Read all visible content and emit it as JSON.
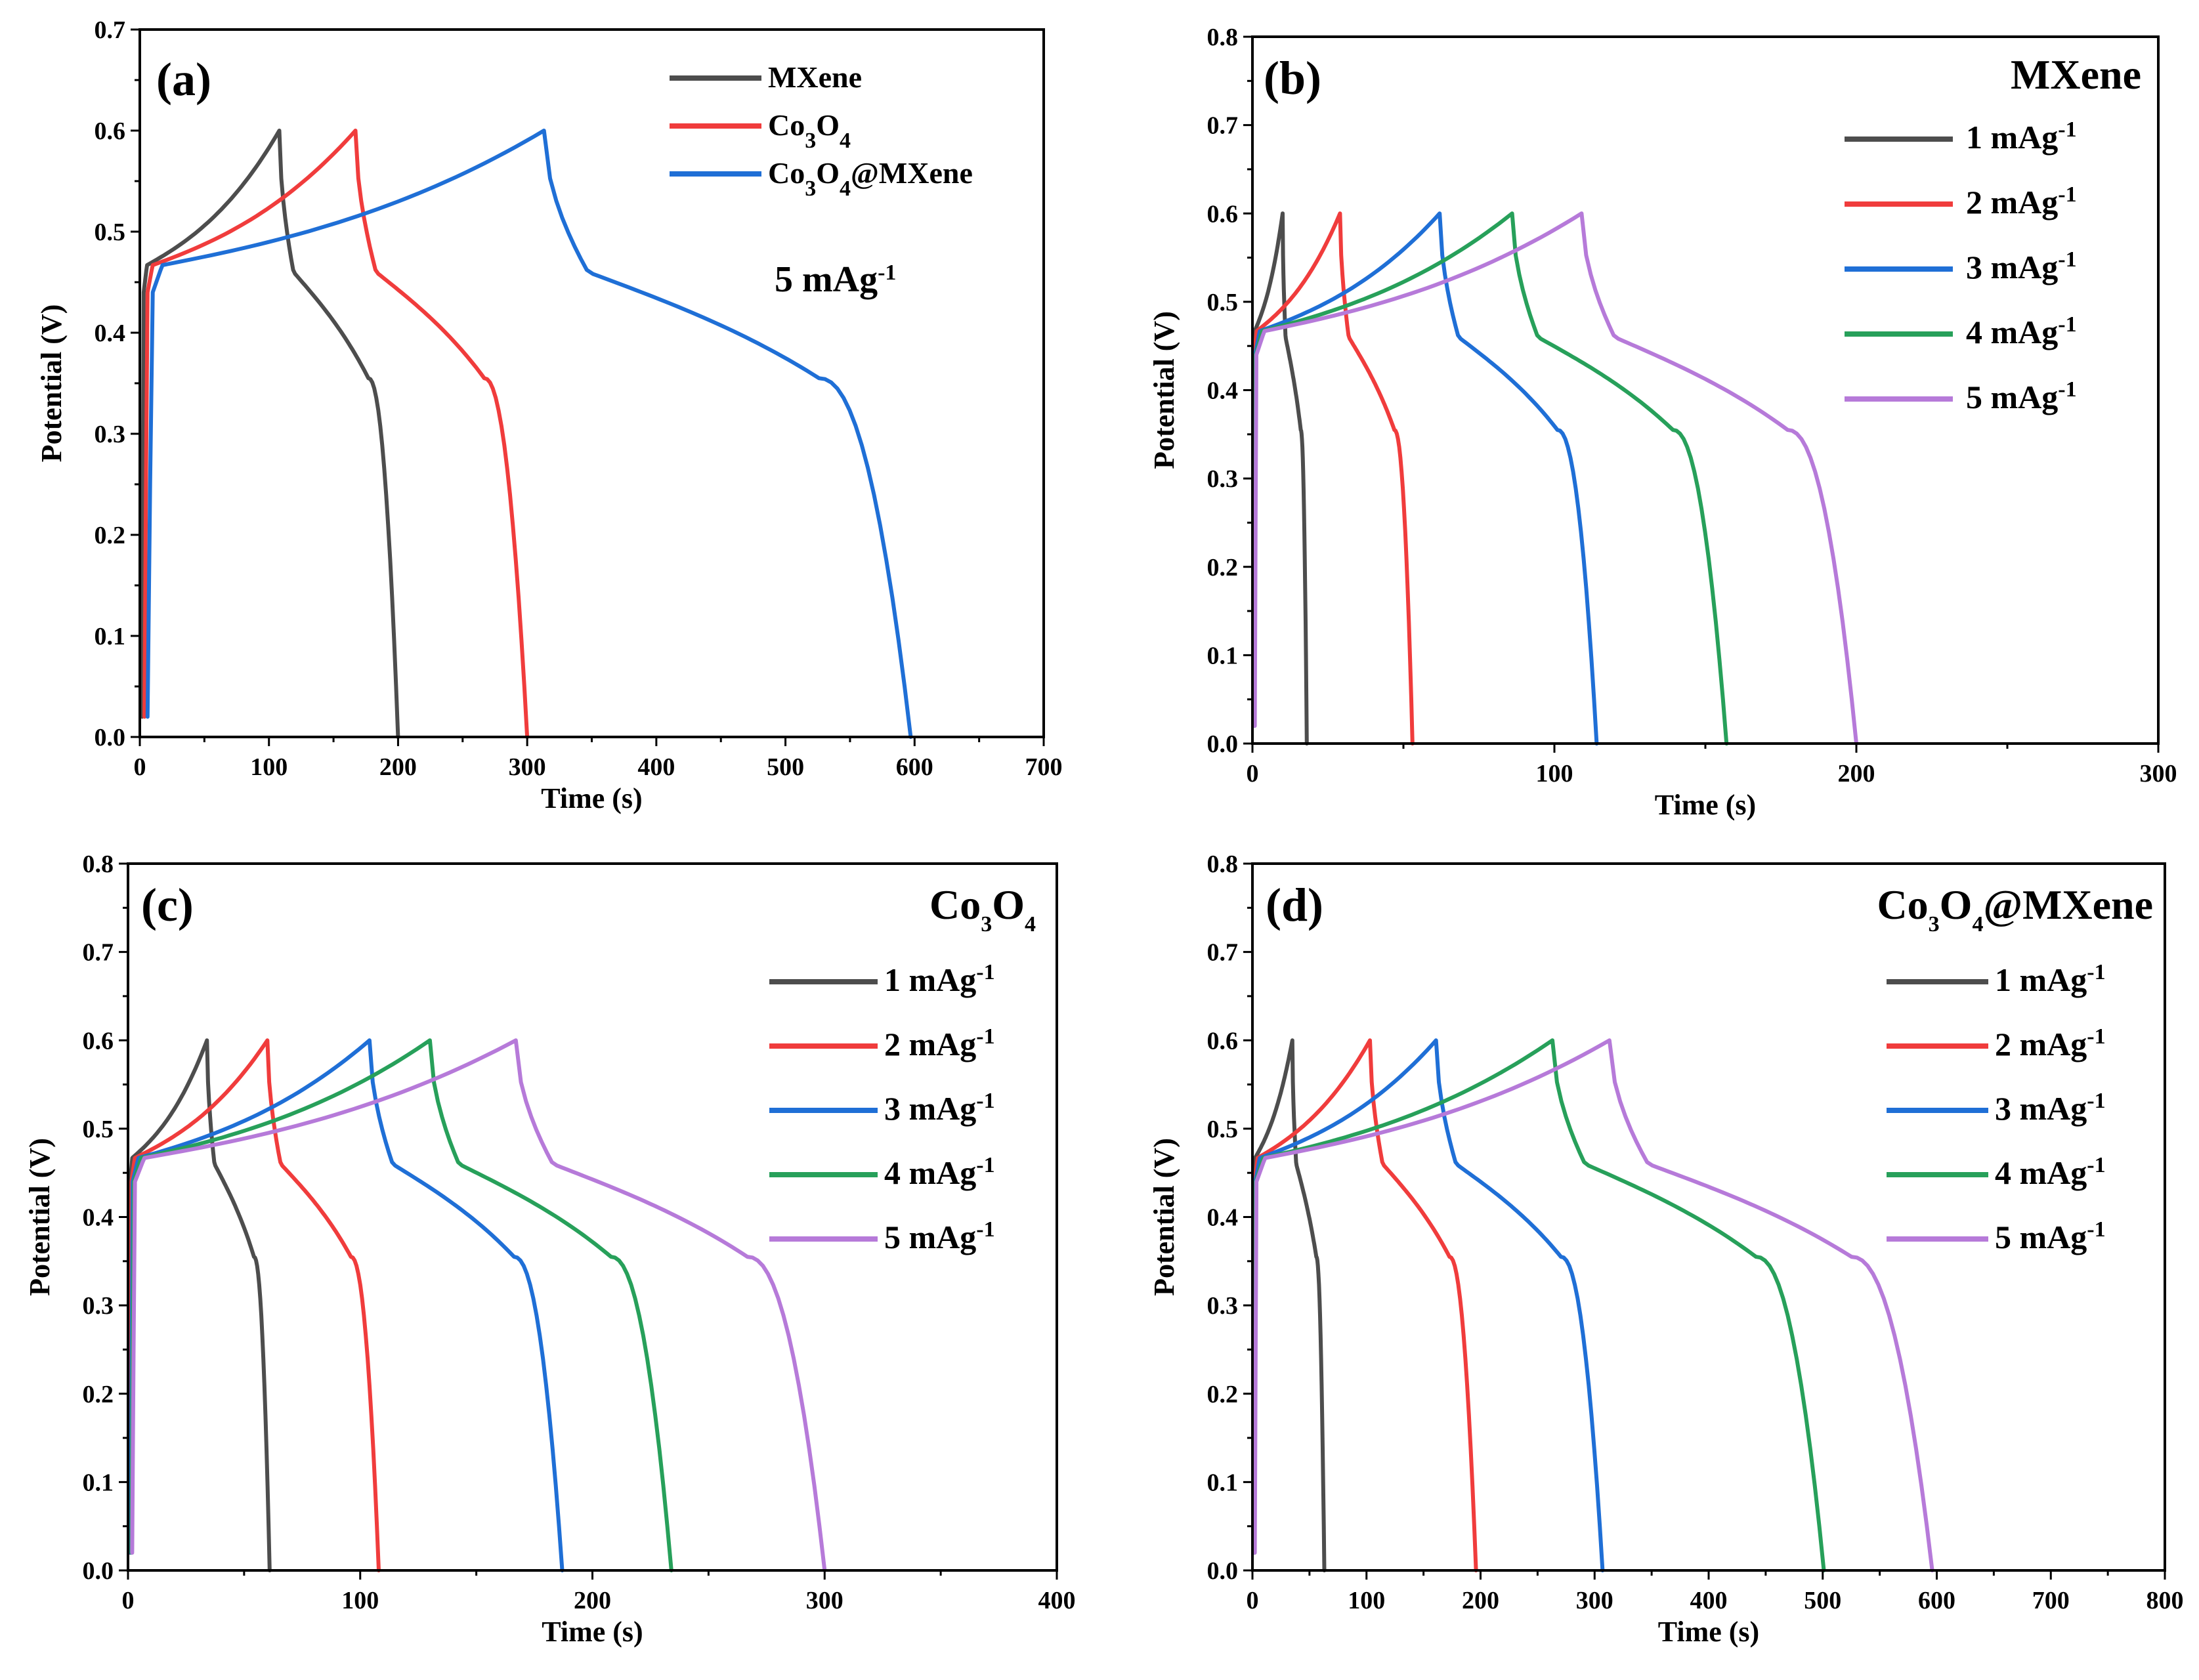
{
  "colors": {
    "gray": "#4d4d4d",
    "red": "#f03c3c",
    "blue": "#1f6fd6",
    "green": "#27a05a",
    "purple": "#b67ad9"
  },
  "chart_data": [
    {
      "id": "a",
      "type": "line",
      "panel_label": "(a)",
      "xlabel": "Time (s)",
      "ylabel": "Potential (V)",
      "xlim": [
        0,
        700
      ],
      "ylim": [
        0,
        0.7
      ],
      "xticks": [
        "0",
        "100",
        "200",
        "300",
        "400",
        "500",
        "600",
        "700"
      ],
      "yticks": [
        "0.0",
        "0.1",
        "0.2",
        "0.3",
        "0.4",
        "0.5",
        "0.6",
        "0.7"
      ],
      "annotation": {
        "main": "5 mAg",
        "sup": "-1"
      },
      "series": [
        {
          "name": "MXene",
          "legend_main": "MXene",
          "color": "gray",
          "charge_end": 108,
          "discharge_end": 200,
          "start": 3
        },
        {
          "name": "Co3O4",
          "legend_main": "Co",
          "legend_sub1": "3",
          "legend_mid": "O",
          "legend_sub2": "4",
          "legend_tail": "",
          "color": "red",
          "charge_end": 167,
          "discharge_end": 300,
          "start": 6
        },
        {
          "name": "Co3O4@MXene",
          "legend_main": "Co",
          "legend_sub1": "3",
          "legend_mid": "O",
          "legend_sub2": "4",
          "legend_tail": "@MXene",
          "color": "blue",
          "charge_end": 313,
          "discharge_end": 597,
          "start": 10
        }
      ]
    },
    {
      "id": "b",
      "type": "line",
      "panel_label": "(b)",
      "material": {
        "main": "MXene"
      },
      "xlabel": "Time (s)",
      "ylabel": "Potential (V)",
      "xlim": [
        0,
        300
      ],
      "ylim": [
        0,
        0.8
      ],
      "xticks": [
        "0",
        "100",
        "200",
        "300"
      ],
      "yticks": [
        "0.0",
        "0.1",
        "0.2",
        "0.3",
        "0.4",
        "0.5",
        "0.6",
        "0.7",
        "0.8"
      ],
      "series": [
        {
          "name": "1 mAg-1",
          "label": "1 mAg",
          "sup": "-1",
          "color": "gray",
          "charge_end": 10,
          "discharge_end": 18,
          "start": 0.5
        },
        {
          "name": "2 mAg-1",
          "label": "2 mAg",
          "sup": "-1",
          "color": "red",
          "charge_end": 29,
          "discharge_end": 53,
          "start": 0.7
        },
        {
          "name": "3 mAg-1",
          "label": "3 mAg",
          "sup": "-1",
          "color": "blue",
          "charge_end": 62,
          "discharge_end": 114,
          "start": 0.9
        },
        {
          "name": "4 mAg-1",
          "label": "4 mAg",
          "sup": "-1",
          "color": "green",
          "charge_end": 86,
          "discharge_end": 157,
          "start": 1.1
        },
        {
          "name": "5 mAg-1",
          "label": "5 mAg",
          "sup": "-1",
          "color": "purple",
          "charge_end": 109,
          "discharge_end": 200,
          "start": 1.3
        }
      ]
    },
    {
      "id": "c",
      "type": "line",
      "panel_label": "(c)",
      "material": {
        "main": "Co",
        "sub1": "3",
        "mid": "O",
        "sub2": "4",
        "tail": ""
      },
      "xlabel": "Time (s)",
      "ylabel": "Potential (V)",
      "xlim": [
        0,
        400
      ],
      "ylim": [
        0,
        0.8
      ],
      "xticks": [
        "0",
        "100",
        "200",
        "300",
        "400"
      ],
      "yticks": [
        "0.0",
        "0.1",
        "0.2",
        "0.3",
        "0.4",
        "0.5",
        "0.6",
        "0.7",
        "0.8"
      ],
      "series": [
        {
          "name": "1 mAg-1",
          "label": "1 mAg",
          "sup": "-1",
          "color": "gray",
          "charge_end": 34,
          "discharge_end": 61,
          "start": 1
        },
        {
          "name": "2 mAg-1",
          "label": "2 mAg",
          "sup": "-1",
          "color": "red",
          "charge_end": 60,
          "discharge_end": 108,
          "start": 1.5
        },
        {
          "name": "3 mAg-1",
          "label": "3 mAg",
          "sup": "-1",
          "color": "blue",
          "charge_end": 104,
          "discharge_end": 187,
          "start": 2
        },
        {
          "name": "4 mAg-1",
          "label": "4 mAg",
          "sup": "-1",
          "color": "green",
          "charge_end": 130,
          "discharge_end": 234,
          "start": 2.5
        },
        {
          "name": "5 mAg-1",
          "label": "5 mAg",
          "sup": "-1",
          "color": "purple",
          "charge_end": 167,
          "discharge_end": 300,
          "start": 3
        }
      ]
    },
    {
      "id": "d",
      "type": "line",
      "panel_label": "(d)",
      "material": {
        "main": "Co",
        "sub1": "3",
        "mid": "O",
        "sub2": "4",
        "tail": "@MXene"
      },
      "xlabel": "Time (s)",
      "ylabel": "Potential (V)",
      "xlim": [
        0,
        800
      ],
      "ylim": [
        0,
        0.8
      ],
      "xticks": [
        "0",
        "100",
        "200",
        "300",
        "400",
        "500",
        "600",
        "700",
        "800"
      ],
      "yticks": [
        "0.0",
        "0.1",
        "0.2",
        "0.3",
        "0.4",
        "0.5",
        "0.6",
        "0.7",
        "0.8"
      ],
      "series": [
        {
          "name": "1 mAg-1",
          "label": "1 mAg",
          "sup": "-1",
          "color": "gray",
          "charge_end": 35,
          "discharge_end": 63,
          "start": 1.5
        },
        {
          "name": "2 mAg-1",
          "label": "2 mAg",
          "sup": "-1",
          "color": "red",
          "charge_end": 103,
          "discharge_end": 196,
          "start": 2
        },
        {
          "name": "3 mAg-1",
          "label": "3 mAg",
          "sup": "-1",
          "color": "blue",
          "charge_end": 161,
          "discharge_end": 307,
          "start": 2.5
        },
        {
          "name": "4 mAg-1",
          "label": "4 mAg",
          "sup": "-1",
          "color": "green",
          "charge_end": 263,
          "discharge_end": 501,
          "start": 3
        },
        {
          "name": "5 mAg-1",
          "label": "5 mAg",
          "sup": "-1",
          "color": "purple",
          "charge_end": 313,
          "discharge_end": 596,
          "start": 3.5
        }
      ]
    }
  ]
}
